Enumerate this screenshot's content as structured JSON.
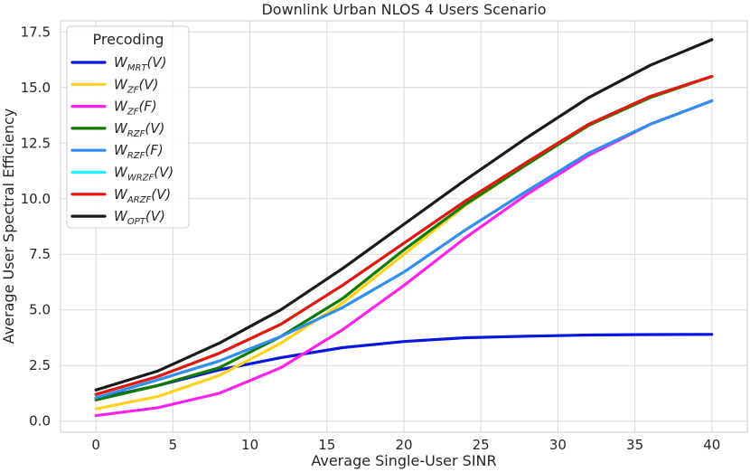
{
  "chart_data": {
    "type": "line",
    "title": "Downlink Urban NLOS 4 Users Scenario",
    "xlabel": "Average Single-User SINR",
    "ylabel": "Average User Spectral Efficiency",
    "xlim": [
      -2.3,
      42.3
    ],
    "ylim": [
      -0.5,
      18.0
    ],
    "xticks": [
      0,
      5,
      10,
      15,
      20,
      25,
      30,
      35,
      40
    ],
    "yticks": [
      0.0,
      2.5,
      5.0,
      7.5,
      10.0,
      12.5,
      15.0,
      17.5
    ],
    "ytick_labels": [
      "0.0",
      "2.5",
      "5.0",
      "7.5",
      "10.0",
      "12.5",
      "15.0",
      "17.5"
    ],
    "grid": true,
    "legend_title": "Precoding",
    "legend_position": "top-left",
    "x": [
      0,
      4,
      8,
      12,
      16,
      20,
      24,
      28,
      32,
      36,
      40
    ],
    "series": [
      {
        "name": "W_MRT(V)",
        "base": "W",
        "sub": "MRT",
        "arg": "(V)",
        "color": "#0a16e0",
        "values": [
          1.0,
          1.6,
          2.3,
          2.85,
          3.3,
          3.58,
          3.75,
          3.82,
          3.87,
          3.89,
          3.9
        ]
      },
      {
        "name": "W_ZF(V)",
        "base": "W",
        "sub": "ZF",
        "arg": "(V)",
        "color": "#ffd11a",
        "values": [
          0.55,
          1.1,
          2.05,
          3.5,
          5.3,
          7.5,
          9.7,
          11.55,
          13.3,
          14.55,
          15.5
        ]
      },
      {
        "name": "W_ZF(F)",
        "base": "W",
        "sub": "ZF",
        "arg": "(F)",
        "color": "#ff22ee",
        "values": [
          0.25,
          0.6,
          1.25,
          2.4,
          4.1,
          6.1,
          8.25,
          10.2,
          11.95,
          13.35,
          14.4
        ]
      },
      {
        "name": "W_RZF(V)",
        "base": "W",
        "sub": "RZF",
        "arg": "(V)",
        "color": "#117a00",
        "values": [
          0.95,
          1.6,
          2.4,
          3.8,
          5.5,
          7.7,
          9.75,
          11.55,
          13.3,
          14.55,
          15.5
        ]
      },
      {
        "name": "W_RZF(F)",
        "base": "W",
        "sub": "RZF",
        "arg": "(F)",
        "color": "#2f8fef",
        "values": [
          1.05,
          1.85,
          2.7,
          3.8,
          5.1,
          6.7,
          8.6,
          10.35,
          12.05,
          13.35,
          14.4
        ]
      },
      {
        "name": "W_WRZF(V)",
        "base": "W",
        "sub": "WRZF",
        "arg": "(V)",
        "color": "#1ff0ff",
        "values": [
          1.2,
          2.0,
          3.05,
          4.35,
          6.1,
          8.0,
          9.9,
          11.65,
          13.35,
          14.6,
          15.5
        ]
      },
      {
        "name": "W_ARZF(V)",
        "base": "W",
        "sub": "ARZF",
        "arg": "(V)",
        "color": "#e8150c",
        "values": [
          1.2,
          2.0,
          3.05,
          4.35,
          6.1,
          8.0,
          9.9,
          11.65,
          13.35,
          14.6,
          15.5
        ]
      },
      {
        "name": "W_OPT(V)",
        "base": "W",
        "sub": "OPT",
        "arg": "(V)",
        "color": "#1a1a1a",
        "values": [
          1.4,
          2.25,
          3.5,
          5.0,
          6.85,
          8.85,
          10.85,
          12.75,
          14.55,
          16.0,
          17.15
        ]
      }
    ]
  }
}
